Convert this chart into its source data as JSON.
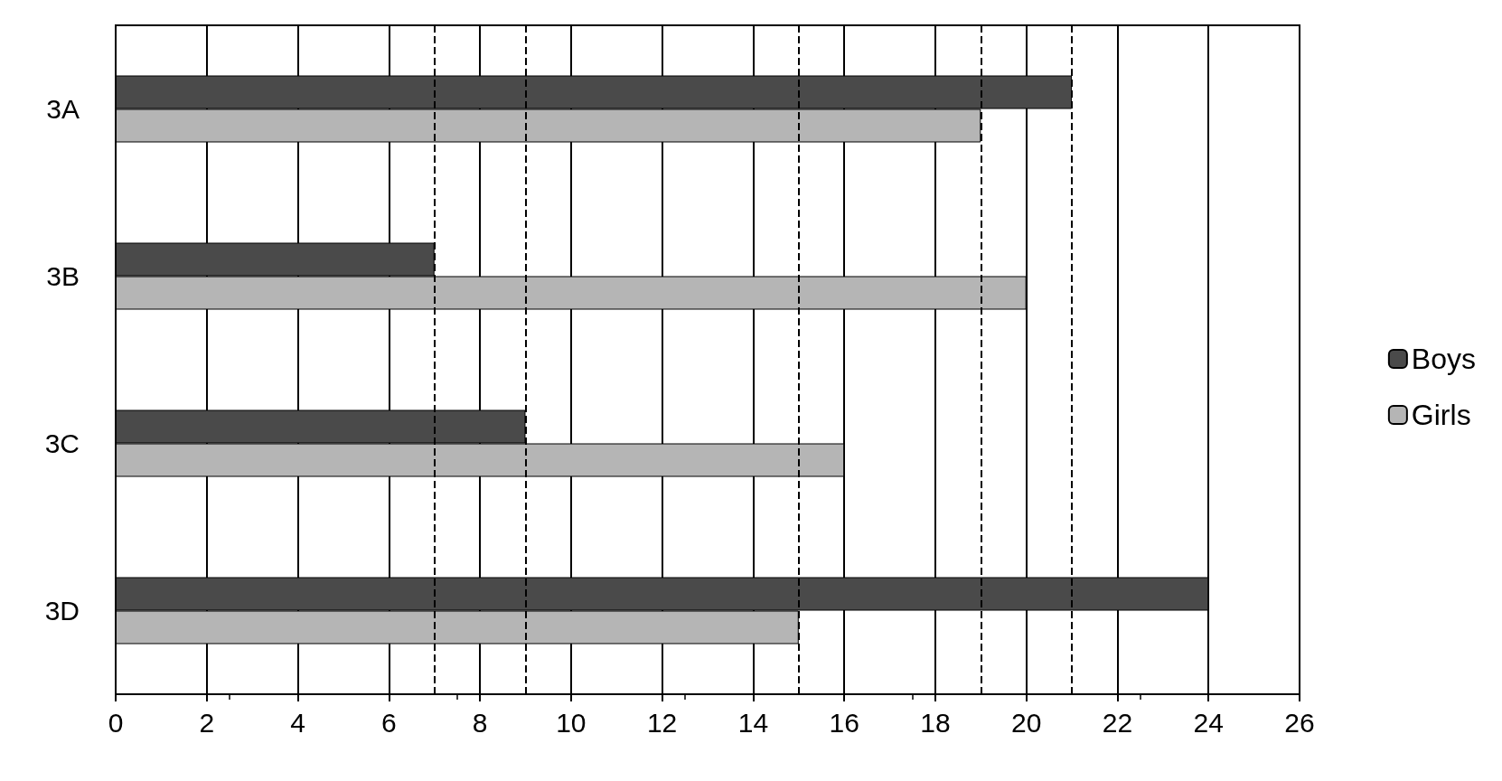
{
  "chart_data": {
    "type": "bar",
    "orientation": "horizontal",
    "categories": [
      "3A",
      "3B",
      "3C",
      "3D"
    ],
    "series": [
      {
        "name": "Boys",
        "color": "#4a4a4a",
        "values": [
          21,
          7,
          9,
          24
        ]
      },
      {
        "name": "Girls",
        "color": "#b5b5b5",
        "values": [
          19,
          20,
          16,
          15
        ]
      }
    ],
    "xlim": [
      0,
      26
    ],
    "xticks": [
      0,
      2,
      4,
      6,
      8,
      10,
      12,
      14,
      16,
      18,
      20,
      22,
      24,
      26
    ],
    "grid": "x",
    "legend": "right",
    "ref_lines": [
      {
        "axis": "x",
        "value": 7,
        "line_style": "dashed"
      },
      {
        "axis": "x",
        "value": 9,
        "line_style": "dashed"
      },
      {
        "axis": "x",
        "value": 15,
        "line_style": "dashed"
      },
      {
        "axis": "x",
        "value": 19,
        "line_style": "dashed"
      },
      {
        "axis": "x",
        "value": 21,
        "line_style": "dashed"
      }
    ]
  }
}
